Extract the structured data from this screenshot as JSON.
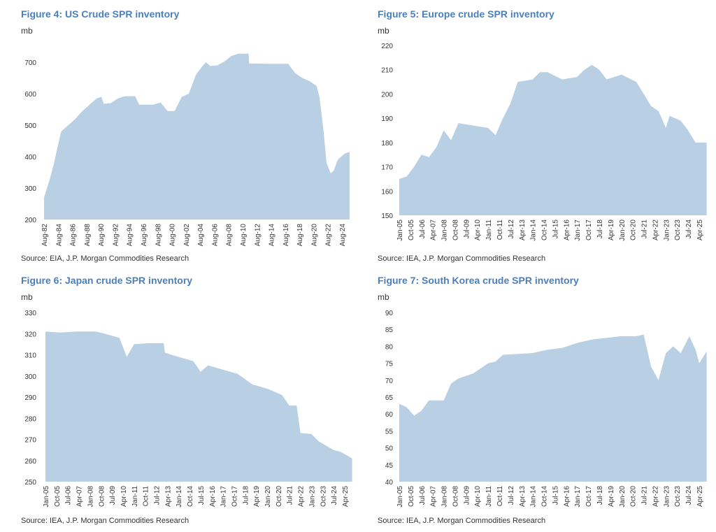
{
  "colors": {
    "title": "#4a7fbc",
    "area": "#b8cfe4"
  },
  "chart_data": [
    {
      "type": "area",
      "title": "Figure 4: US Crude SPR inventory",
      "ylabel": "mb",
      "ylim": [
        200,
        750
      ],
      "yticks": [
        200,
        300,
        400,
        500,
        600,
        700
      ],
      "xticks": [
        "Aug-82",
        "Aug-84",
        "Aug-86",
        "Aug-88",
        "Aug-90",
        "Aug-92",
        "Aug-94",
        "Aug-96",
        "Aug-98",
        "Aug-00",
        "Aug-02",
        "Aug-04",
        "Aug-06",
        "Aug-08",
        "Aug-10",
        "Aug-12",
        "Aug-14",
        "Aug-16",
        "Aug-18",
        "Aug-20",
        "Aug-22",
        "Aug-24"
      ],
      "tick_start": "1982-08",
      "tick_step_months": 24,
      "xlim": [
        "1982-08",
        "2025-09"
      ],
      "source": "Source: EIA, J.P. Morgan Commodities Research",
      "points": [
        [
          "1982-08",
          270
        ],
        [
          "1983-06",
          330
        ],
        [
          "1984-01",
          380
        ],
        [
          "1984-08",
          440
        ],
        [
          "1985-01",
          480
        ],
        [
          "1986-01",
          500
        ],
        [
          "1987-01",
          520
        ],
        [
          "1988-01",
          545
        ],
        [
          "1989-01",
          565
        ],
        [
          "1990-01",
          585
        ],
        [
          "1990-09",
          590
        ],
        [
          "1991-01",
          568
        ],
        [
          "1992-01",
          570
        ],
        [
          "1993-01",
          585
        ],
        [
          "1994-01",
          592
        ],
        [
          "1995-06",
          592
        ],
        [
          "1996-01",
          565
        ],
        [
          "1998-01",
          565
        ],
        [
          "1999-01",
          572
        ],
        [
          "2000-01",
          545
        ],
        [
          "2001-01",
          545
        ],
        [
          "2002-01",
          590
        ],
        [
          "2003-01",
          600
        ],
        [
          "2004-01",
          660
        ],
        [
          "2005-01",
          690
        ],
        [
          "2005-06",
          700
        ],
        [
          "2006-01",
          688
        ],
        [
          "2007-01",
          690
        ],
        [
          "2008-01",
          702
        ],
        [
          "2009-01",
          720
        ],
        [
          "2010-01",
          727
        ],
        [
          "2011-06",
          727
        ],
        [
          "2011-07",
          696
        ],
        [
          "2014-01",
          695
        ],
        [
          "2017-01",
          695
        ],
        [
          "2018-01",
          665
        ],
        [
          "2019-01",
          650
        ],
        [
          "2020-01",
          640
        ],
        [
          "2021-01",
          625
        ],
        [
          "2021-06",
          590
        ],
        [
          "2022-01",
          480
        ],
        [
          "2022-06",
          380
        ],
        [
          "2023-01",
          347
        ],
        [
          "2023-06",
          355
        ],
        [
          "2024-01",
          390
        ],
        [
          "2025-01",
          410
        ],
        [
          "2025-09",
          415
        ]
      ]
    },
    {
      "type": "area",
      "title": "Figure 5: Europe crude SPR inventory",
      "ylabel": "mb",
      "ylim": [
        150,
        220
      ],
      "yticks": [
        150,
        160,
        170,
        180,
        190,
        200,
        210,
        220
      ],
      "xticks": [
        "Jan-05",
        "Oct-05",
        "Jul-06",
        "Apr-07",
        "Jan-08",
        "Oct-08",
        "Jul-09",
        "Apr-10",
        "Jan-11",
        "Oct-11",
        "Jul-12",
        "Apr-13",
        "Jan-14",
        "Oct-14",
        "Jul-15",
        "Apr-16",
        "Jan-17",
        "Oct-17",
        "Jul-18",
        "Apr-19",
        "Jan-20",
        "Oct-20",
        "Jul-21",
        "Apr-22",
        "Jan-23",
        "Oct-23",
        "Jul-24",
        "Apr-25"
      ],
      "tick_start": "2005-01",
      "tick_step_months": 9,
      "xlim": [
        "2005-01",
        "2025-10"
      ],
      "source": "Source: IEA, J.P. Morgan Commodities Research",
      "points": [
        [
          "2005-01",
          165
        ],
        [
          "2005-07",
          166
        ],
        [
          "2006-01",
          170
        ],
        [
          "2006-07",
          175
        ],
        [
          "2007-01",
          174
        ],
        [
          "2007-07",
          178
        ],
        [
          "2008-01",
          185
        ],
        [
          "2008-07",
          181
        ],
        [
          "2009-01",
          188
        ],
        [
          "2010-01",
          187
        ],
        [
          "2011-01",
          186
        ],
        [
          "2011-07",
          183
        ],
        [
          "2012-01",
          190
        ],
        [
          "2012-07",
          196
        ],
        [
          "2013-01",
          205
        ],
        [
          "2014-01",
          206
        ],
        [
          "2014-07",
          209
        ],
        [
          "2015-01",
          209
        ],
        [
          "2016-01",
          206
        ],
        [
          "2017-01",
          207
        ],
        [
          "2017-07",
          210
        ],
        [
          "2018-01",
          212
        ],
        [
          "2018-07",
          210
        ],
        [
          "2019-01",
          206
        ],
        [
          "2020-01",
          208
        ],
        [
          "2021-01",
          205
        ],
        [
          "2021-07",
          200
        ],
        [
          "2022-01",
          195
        ],
        [
          "2022-07",
          193
        ],
        [
          "2023-01",
          186
        ],
        [
          "2023-04",
          191
        ],
        [
          "2024-01",
          189
        ],
        [
          "2024-07",
          185
        ],
        [
          "2025-01",
          180
        ],
        [
          "2025-10",
          180
        ]
      ]
    },
    {
      "type": "area",
      "title": "Figure 6: Japan crude SPR inventory",
      "ylabel": "mb",
      "ylim": [
        250,
        330
      ],
      "yticks": [
        250,
        260,
        270,
        280,
        290,
        300,
        310,
        320,
        330
      ],
      "xticks": [
        "Jan-05",
        "Oct-05",
        "Jul-06",
        "Apr-07",
        "Jan-08",
        "Oct-08",
        "Jul-09",
        "Apr-10",
        "Jan-11",
        "Oct-11",
        "Jul-12",
        "Apr-13",
        "Jan-14",
        "Oct-14",
        "Jul-15",
        "Apr-16",
        "Jan-17",
        "Oct-17",
        "Jul-18",
        "Apr-19",
        "Jan-20",
        "Oct-20",
        "Jul-21",
        "Apr-22",
        "Jan-23",
        "Oct-23",
        "Jul-24",
        "Apr-25"
      ],
      "tick_start": "2005-01",
      "tick_step_months": 9,
      "xlim": [
        "2005-01",
        "2025-10"
      ],
      "source": "Source: IEA, J.P. Morgan Commodities Research",
      "points": [
        [
          "2005-01",
          321
        ],
        [
          "2006-01",
          320.5
        ],
        [
          "2007-01",
          321
        ],
        [
          "2008-06",
          321
        ],
        [
          "2009-01",
          320
        ],
        [
          "2010-01",
          318
        ],
        [
          "2010-07",
          309
        ],
        [
          "2011-01",
          315
        ],
        [
          "2012-01",
          315.5
        ],
        [
          "2013-01",
          315.5
        ],
        [
          "2013-02",
          311
        ],
        [
          "2014-01",
          309
        ],
        [
          "2015-01",
          307
        ],
        [
          "2015-07",
          302
        ],
        [
          "2016-01",
          305
        ],
        [
          "2017-01",
          303
        ],
        [
          "2018-01",
          301
        ],
        [
          "2019-01",
          296
        ],
        [
          "2020-01",
          294
        ],
        [
          "2021-01",
          291
        ],
        [
          "2021-07",
          286
        ],
        [
          "2022-01",
          286
        ],
        [
          "2022-04",
          273
        ],
        [
          "2023-01",
          272.5
        ],
        [
          "2023-07",
          269
        ],
        [
          "2024-01",
          267
        ],
        [
          "2024-07",
          265
        ],
        [
          "2025-01",
          264
        ],
        [
          "2025-10",
          261
        ]
      ]
    },
    {
      "type": "area",
      "title": "Figure 7: South Korea crude SPR inventory",
      "ylabel": "mb",
      "ylim": [
        40,
        90
      ],
      "yticks": [
        40,
        45,
        50,
        55,
        60,
        65,
        70,
        75,
        80,
        85,
        90
      ],
      "xticks": [
        "Jan-05",
        "Oct-05",
        "Jul-06",
        "Apr-07",
        "Jan-08",
        "Oct-08",
        "Jul-09",
        "Apr-10",
        "Jan-11",
        "Oct-11",
        "Jul-12",
        "Apr-13",
        "Jan-14",
        "Oct-14",
        "Jul-15",
        "Apr-16",
        "Jan-17",
        "Oct-17",
        "Jul-18",
        "Apr-19",
        "Jan-20",
        "Oct-20",
        "Jul-21",
        "Apr-22",
        "Jan-23",
        "Oct-23",
        "Jul-24",
        "Apr-25"
      ],
      "tick_start": "2005-01",
      "tick_step_months": 9,
      "xlim": [
        "2005-01",
        "2025-10"
      ],
      "source": "Source: IEA, J.P. Morgan Commodities Research",
      "points": [
        [
          "2005-01",
          63
        ],
        [
          "2005-07",
          62
        ],
        [
          "2006-01",
          59.5
        ],
        [
          "2006-07",
          61
        ],
        [
          "2007-01",
          64
        ],
        [
          "2008-01",
          64
        ],
        [
          "2008-07",
          69
        ],
        [
          "2009-01",
          70.5
        ],
        [
          "2010-01",
          72
        ],
        [
          "2011-01",
          75
        ],
        [
          "2011-07",
          75.5
        ],
        [
          "2012-01",
          77.5
        ],
        [
          "2014-01",
          78
        ],
        [
          "2015-01",
          79
        ],
        [
          "2016-01",
          79.5
        ],
        [
          "2017-01",
          81
        ],
        [
          "2018-01",
          82
        ],
        [
          "2019-01",
          82.5
        ],
        [
          "2020-01",
          83
        ],
        [
          "2021-01",
          83
        ],
        [
          "2021-07",
          83.5
        ],
        [
          "2022-01",
          74
        ],
        [
          "2022-07",
          70
        ],
        [
          "2023-01",
          78
        ],
        [
          "2023-07",
          80
        ],
        [
          "2024-01",
          78
        ],
        [
          "2024-08",
          83
        ],
        [
          "2025-01",
          79
        ],
        [
          "2025-04",
          75
        ],
        [
          "2025-10",
          78.5
        ]
      ]
    }
  ]
}
